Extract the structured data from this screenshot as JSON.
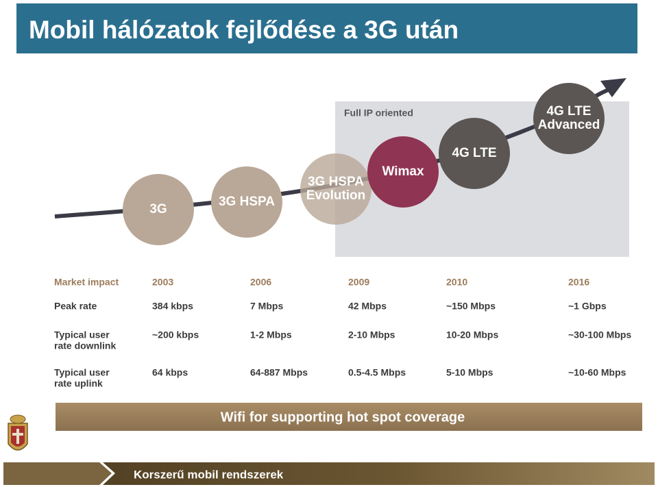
{
  "header": {
    "title": "Mobil hálózatok fejlődése a 3G után"
  },
  "diagram": {
    "region_label": "Full IP oriented",
    "stages": [
      {
        "label": [
          "3G"
        ]
      },
      {
        "label": [
          "3G HSPA"
        ]
      },
      {
        "label": [
          "3G HSPA",
          "Evolution"
        ]
      },
      {
        "label": [
          "Wimax"
        ]
      },
      {
        "label": [
          "4G LTE"
        ]
      },
      {
        "label": [
          "4G LTE",
          "Advanced"
        ]
      }
    ]
  },
  "table": {
    "header": {
      "label": [
        "Market impact"
      ],
      "cells": [
        "2003",
        "2006",
        "2009",
        "2010",
        "2016"
      ]
    },
    "rows": [
      {
        "label": [
          "Peak rate"
        ],
        "cells": [
          "384 kbps",
          "7 Mbps",
          "42 Mbps",
          "~150 Mbps",
          "~1 Gbps"
        ]
      },
      {
        "label": [
          "Typical user",
          "rate downlink"
        ],
        "cells": [
          "~200 kbps",
          "1-2 Mbps",
          "2-10 Mbps",
          "10-20 Mbps",
          "~30-100 Mbps"
        ]
      },
      {
        "label": [
          "Typical user",
          "rate uplink"
        ],
        "cells": [
          "64 kbps",
          "64-887 Mbps",
          "0.5-4.5 Mbps",
          "5-10 Mbps",
          "~10-60 Mbps"
        ]
      }
    ]
  },
  "banner": {
    "text": "Wifi for supporting hot spot coverage"
  },
  "footer": {
    "text": "Korszerű mobil rendszerek"
  }
}
